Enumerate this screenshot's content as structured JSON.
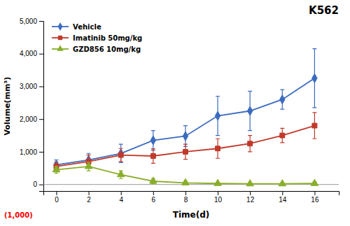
{
  "chart_data": {
    "type": "line",
    "title": "K562",
    "xlabel": "Time(d)",
    "ylabel": "Volume(mm³)",
    "annotations": [
      {
        "text": "(1,000)",
        "color": "red"
      }
    ],
    "x": [
      0,
      2,
      4,
      6,
      8,
      10,
      12,
      14,
      16
    ],
    "series": [
      {
        "name": "Vehicle",
        "color": "#3b6bbf",
        "marker": "diamond",
        "values": [
          600,
          750,
          950,
          1350,
          1480,
          2100,
          2250,
          2600,
          3250
        ],
        "errors": [
          150,
          200,
          280,
          300,
          320,
          600,
          600,
          300,
          900
        ]
      },
      {
        "name": "Imatinib 50mg/kg",
        "color": "#c0392b",
        "marker": "square",
        "values": [
          550,
          700,
          900,
          870,
          1000,
          1100,
          1250,
          1500,
          1800
        ],
        "errors": [
          130,
          200,
          200,
          220,
          230,
          300,
          250,
          220,
          400
        ]
      },
      {
        "name": "GZD856 10mg/kg",
        "color": "#8aae2a",
        "marker": "triangle",
        "values": [
          450,
          550,
          300,
          100,
          50,
          30,
          20,
          20,
          30
        ],
        "errors": [
          100,
          130,
          120,
          80,
          50,
          30,
          20,
          20,
          50
        ]
      }
    ],
    "reference_lines": [
      {
        "y": 0,
        "color": "gray"
      }
    ],
    "xlim": [
      -0.8,
      17.5
    ],
    "xticks": [
      0,
      2,
      4,
      6,
      8,
      10,
      12,
      14,
      16
    ],
    "ylim": [
      -200,
      5000
    ],
    "yticks": [
      0,
      {
        "value": 1000,
        "label": "1,000"
      },
      {
        "value": 2000,
        "label": "2,000"
      },
      {
        "value": 3000,
        "label": "3,000"
      },
      {
        "value": 4000,
        "label": "4,000"
      },
      {
        "value": 5000,
        "label": "5,000"
      }
    ],
    "legend": "upper-left",
    "grid": false
  }
}
